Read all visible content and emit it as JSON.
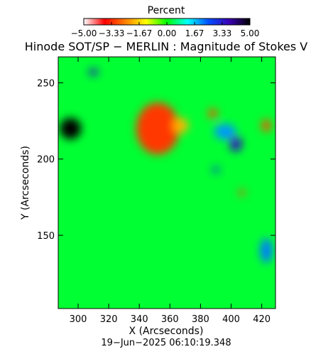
{
  "chart_data": {
    "type": "heatmap",
    "title": "Hinode SOT/SP − MERLIN : Magnitude of Stokes V",
    "xlabel": "X (Arcseconds)",
    "ylabel": "Y (Arcseconds)",
    "xlim": [
      287,
      429
    ],
    "ylim": [
      102,
      267
    ],
    "x_ticks": [
      300,
      320,
      340,
      360,
      380,
      400,
      420
    ],
    "y_ticks": [
      150,
      200,
      250
    ],
    "colorbar": {
      "title": "Percent",
      "range": [
        -5.0,
        5.0
      ],
      "tick_values": [
        -5.0,
        -3.33,
        -1.67,
        0.0,
        1.67,
        3.33,
        5.0
      ],
      "tick_labels": [
        "−5.00",
        "−3.33",
        "−1.67",
        "0.00",
        "1.67",
        "3.33",
        "5.00"
      ],
      "colormap": [
        "#ffffff",
        "#ff0000",
        "#ff8000",
        "#ffff00",
        "#00ff00",
        "#00ffff",
        "#0050ff",
        "#3c00b4",
        "#000000"
      ]
    },
    "background_level": 0.25,
    "features": [
      {
        "x": 295,
        "y": 220,
        "rx": 7,
        "ry": 7,
        "level": 5.0
      },
      {
        "x": 346,
        "y": 215,
        "rx": 6,
        "ry": 8,
        "level": -5.0
      },
      {
        "x": 352,
        "y": 220,
        "rx": 14,
        "ry": 17,
        "level": -3.2
      },
      {
        "x": 367,
        "y": 222,
        "rx": 5,
        "ry": 5,
        "level": -2.0
      },
      {
        "x": 388,
        "y": 230,
        "rx": 3,
        "ry": 3,
        "level": -3.0
      },
      {
        "x": 403,
        "y": 210,
        "rx": 4,
        "ry": 5,
        "level": 3.6
      },
      {
        "x": 396,
        "y": 218,
        "rx": 7,
        "ry": 5,
        "level": 2.0
      },
      {
        "x": 310,
        "y": 257,
        "rx": 3,
        "ry": 2,
        "level": 3.4
      },
      {
        "x": 423,
        "y": 222,
        "rx": 3,
        "ry": 4,
        "level": -3.0
      },
      {
        "x": 390,
        "y": 193,
        "rx": 2,
        "ry": 2,
        "level": 3.0
      },
      {
        "x": 407,
        "y": 178,
        "rx": 2,
        "ry": 2,
        "level": -3.0
      },
      {
        "x": 423,
        "y": 140,
        "rx": 4,
        "ry": 8,
        "level": 2.2
      }
    ]
  },
  "timestamp": "19−Jun−2025 06:10:19.348"
}
